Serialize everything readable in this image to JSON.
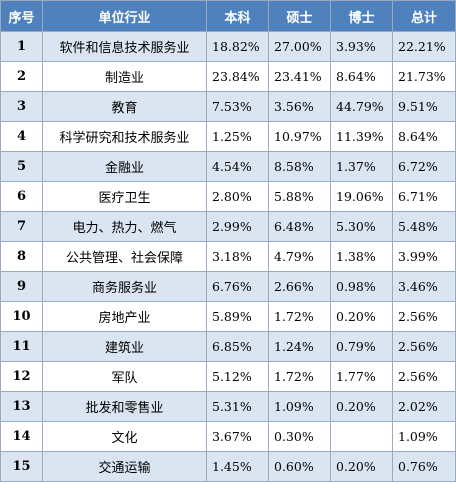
{
  "table": {
    "headers": [
      "序号",
      "单位行业",
      "本科",
      "硕士",
      "博士",
      "总计"
    ],
    "rows": [
      {
        "no": "1",
        "industry": "软件和信息技术服务业",
        "bachelor": "18.82%",
        "master": "27.00%",
        "doctor": "3.93%",
        "total": "22.21%"
      },
      {
        "no": "2",
        "industry": "制造业",
        "bachelor": "23.84%",
        "master": "23.41%",
        "doctor": "8.64%",
        "total": "21.73%"
      },
      {
        "no": "3",
        "industry": "教育",
        "bachelor": "7.53%",
        "master": "3.56%",
        "doctor": "44.79%",
        "total": "9.51%"
      },
      {
        "no": "4",
        "industry": "科学研究和技术服务业",
        "bachelor": "1.25%",
        "master": "10.97%",
        "doctor": "11.39%",
        "total": "8.64%"
      },
      {
        "no": "5",
        "industry": "金融业",
        "bachelor": "4.54%",
        "master": "8.58%",
        "doctor": "1.37%",
        "total": "6.72%"
      },
      {
        "no": "6",
        "industry": "医疗卫生",
        "bachelor": "2.80%",
        "master": "5.88%",
        "doctor": "19.06%",
        "total": "6.71%"
      },
      {
        "no": "7",
        "industry": "电力、热力、燃气",
        "bachelor": "2.99%",
        "master": "6.48%",
        "doctor": "5.30%",
        "total": "5.48%"
      },
      {
        "no": "8",
        "industry": "公共管理、社会保障",
        "bachelor": "3.18%",
        "master": "4.79%",
        "doctor": "1.38%",
        "total": "3.99%"
      },
      {
        "no": "9",
        "industry": "商务服务业",
        "bachelor": "6.76%",
        "master": "2.66%",
        "doctor": "0.98%",
        "total": "3.46%"
      },
      {
        "no": "10",
        "industry": "房地产业",
        "bachelor": "5.89%",
        "master": "1.72%",
        "doctor": "0.20%",
        "total": "2.56%"
      },
      {
        "no": "11",
        "industry": "建筑业",
        "bachelor": "6.85%",
        "master": "1.24%",
        "doctor": "0.79%",
        "total": "2.56%"
      },
      {
        "no": "12",
        "industry": "军队",
        "bachelor": "5.12%",
        "master": "1.72%",
        "doctor": "1.77%",
        "total": "2.56%"
      },
      {
        "no": "13",
        "industry": "批发和零售业",
        "bachelor": "5.31%",
        "master": "1.09%",
        "doctor": "0.20%",
        "total": "2.02%"
      },
      {
        "no": "14",
        "industry": "文化",
        "bachelor": "3.67%",
        "master": "0.30%",
        "doctor": "",
        "total": "1.09%"
      },
      {
        "no": "15",
        "industry": "交通运输",
        "bachelor": "1.45%",
        "master": "0.60%",
        "doctor": "0.20%",
        "total": "0.76%"
      }
    ]
  },
  "colors": {
    "header_bg": "#4f81bd",
    "header_text": "#ffffff",
    "band_row": "#dbe5f1",
    "plain_row": "#ffffff",
    "border": "#9aa9c4"
  }
}
